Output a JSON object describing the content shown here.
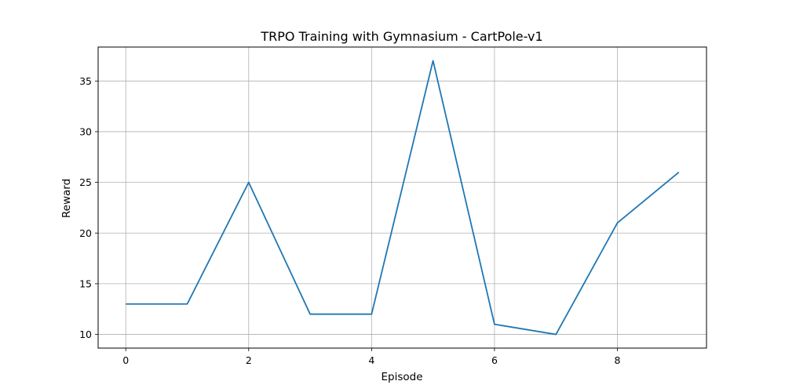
{
  "chart_data": {
    "type": "line",
    "title": "TRPO Training with Gymnasium - CartPole-v1",
    "xlabel": "Episode",
    "ylabel": "Reward",
    "x": [
      0,
      1,
      2,
      3,
      4,
      5,
      6,
      7,
      8,
      9
    ],
    "series": [
      {
        "values": [
          13,
          13,
          25,
          12,
          12,
          37,
          11,
          10,
          21,
          26
        ],
        "color": "#1f77b4"
      }
    ],
    "xticks": [
      0,
      2,
      4,
      6,
      8
    ],
    "yticks": [
      10,
      15,
      20,
      25,
      30,
      35
    ],
    "xlim": [
      -0.45,
      9.45
    ],
    "ylim": [
      8.65,
      38.35
    ],
    "grid": true,
    "grid_color": "#b0b0b0"
  }
}
